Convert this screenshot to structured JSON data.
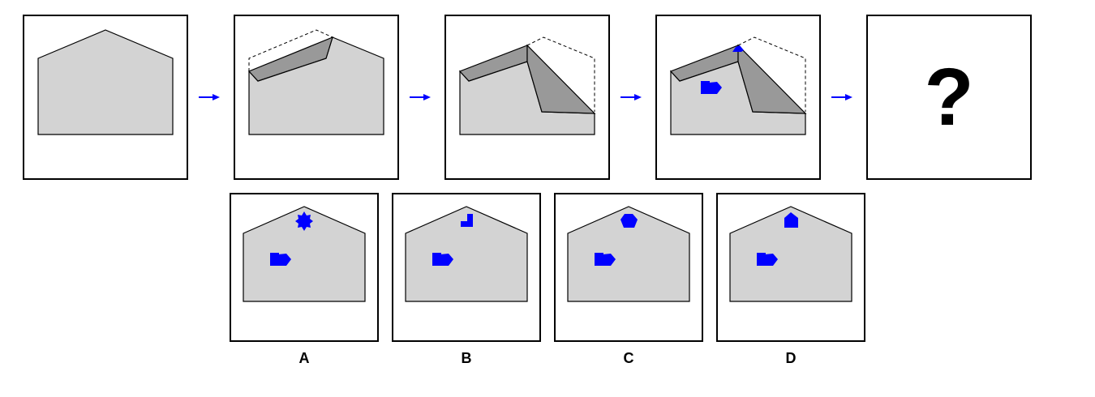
{
  "sequence": {
    "unknown_symbol": "?"
  },
  "options": [
    {
      "label": "A",
      "top_shape": "eight-point-star"
    },
    {
      "label": "B",
      "top_shape": "l-shape"
    },
    {
      "label": "C",
      "top_shape": "pentagon-cap"
    },
    {
      "label": "D",
      "top_shape": "house-pentagon"
    }
  ],
  "colors": {
    "paper": "#d3d3d3",
    "fold": "#999999",
    "outline": "#000000",
    "marker": "#0000ff",
    "arrow": "#0000ff"
  }
}
